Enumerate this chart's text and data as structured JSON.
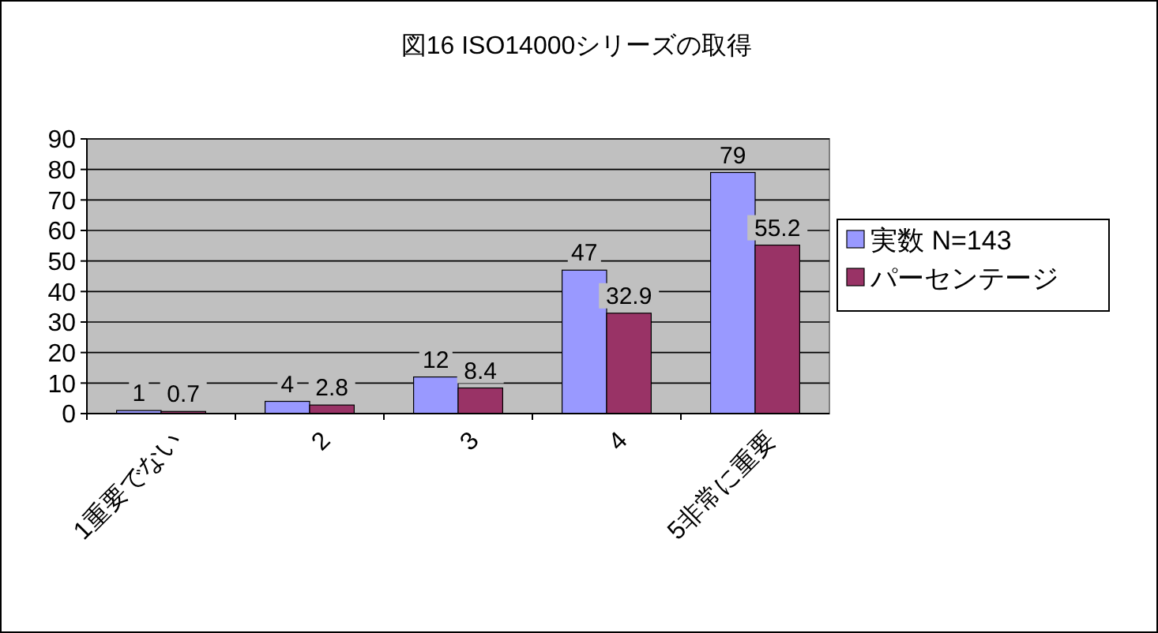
{
  "chart_data": {
    "type": "bar",
    "title": "図16  ISO14000シリーズの取得",
    "categories": [
      "1重要でない",
      "2",
      "3",
      "4",
      "5非常に重要"
    ],
    "series": [
      {
        "name": "実数  N=143",
        "color": "#9999ff",
        "values": [
          1,
          4,
          12,
          47,
          79
        ]
      },
      {
        "name": "パーセンテージ",
        "color": "#993366",
        "values": [
          0.7,
          2.8,
          8.4,
          32.9,
          55.2
        ]
      }
    ],
    "ylim": [
      0,
      90
    ],
    "yticks": [
      0,
      10,
      20,
      30,
      40,
      50,
      60,
      70,
      80,
      90
    ],
    "grid": "y",
    "legend": "right",
    "data_labels": true
  }
}
